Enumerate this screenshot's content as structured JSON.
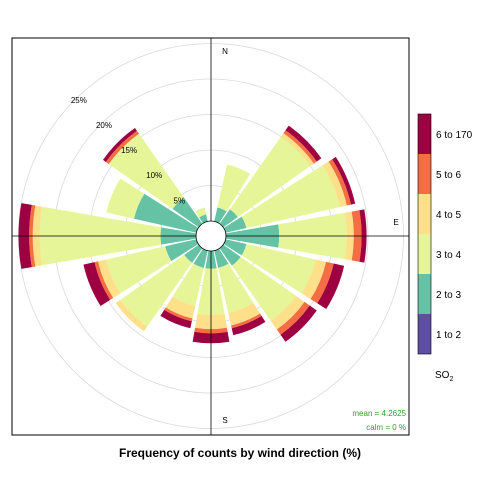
{
  "chart_data": {
    "type": "windrose",
    "xlabel": "Frequency of counts by wind direction (%)",
    "directions": [
      "N",
      "NNE",
      "NE",
      "ENE",
      "E",
      "ESE",
      "SE",
      "SSE",
      "S",
      "SSW",
      "SW",
      "WSW",
      "W",
      "WNW",
      "NW",
      "NNW"
    ],
    "direction_labels": [
      "N",
      "E",
      "S"
    ],
    "radial_ticks": [
      "5%",
      "10%",
      "15%",
      "20%",
      "25%"
    ],
    "radial_tick_values": [
      5,
      10,
      15,
      20,
      25
    ],
    "rmax": 27,
    "bins": [
      {
        "label": "1 to 2",
        "color": "#5e4fa2"
      },
      {
        "label": "2 to 3",
        "color": "#66c2a5"
      },
      {
        "label": "3 to 4",
        "color": "#e6f598"
      },
      {
        "label": "4 to 5",
        "color": "#fee08b"
      },
      {
        "label": "5 to 6",
        "color": "#f46d43"
      },
      {
        "label": "6 to 170",
        "color": "#9e0142"
      }
    ],
    "frequencies": [
      [
        0.0,
        0.0,
        0.0,
        0.0,
        0.0,
        0.0
      ],
      [
        0.0,
        2.0,
        6.2,
        0.0,
        0.0,
        0.0
      ],
      [
        0.0,
        2.5,
        12.5,
        0.6,
        0.5,
        0.8
      ],
      [
        0.0,
        3.0,
        13.5,
        1.0,
        0.6,
        0.6
      ],
      [
        0.0,
        7.5,
        9.5,
        1.0,
        1.1,
        0.7
      ],
      [
        0.0,
        3.0,
        10.0,
        1.5,
        1.1,
        1.5
      ],
      [
        0.0,
        3.0,
        9.5,
        1.5,
        0.9,
        1.2
      ],
      [
        0.0,
        2.5,
        6.5,
        1.8,
        0.4,
        1.0
      ],
      [
        0.0,
        2.5,
        6.5,
        2.0,
        0.6,
        1.4
      ],
      [
        0.0,
        2.5,
        5.5,
        1.8,
        0.4,
        1.0
      ],
      [
        0.0,
        2.5,
        11.0,
        0.8,
        0.0,
        0.0
      ],
      [
        0.0,
        4.5,
        8.5,
        1.2,
        0.5,
        1.6
      ],
      [
        0.0,
        5.0,
        17.0,
        1.0,
        0.5,
        1.5
      ],
      [
        0.0,
        9.0,
        4.0,
        0.0,
        0.0,
        0.0
      ],
      [
        0.0,
        4.5,
        11.0,
        0.0,
        0.5,
        0.5
      ],
      [
        0.0,
        1.0,
        1.0,
        0.0,
        0.0,
        0.0
      ]
    ],
    "legend_title_main": "SO",
    "legend_title_sub": "2",
    "stats": {
      "mean": "mean  =  4.2625",
      "calm": "calm  =  0 %"
    },
    "grid": true
  }
}
